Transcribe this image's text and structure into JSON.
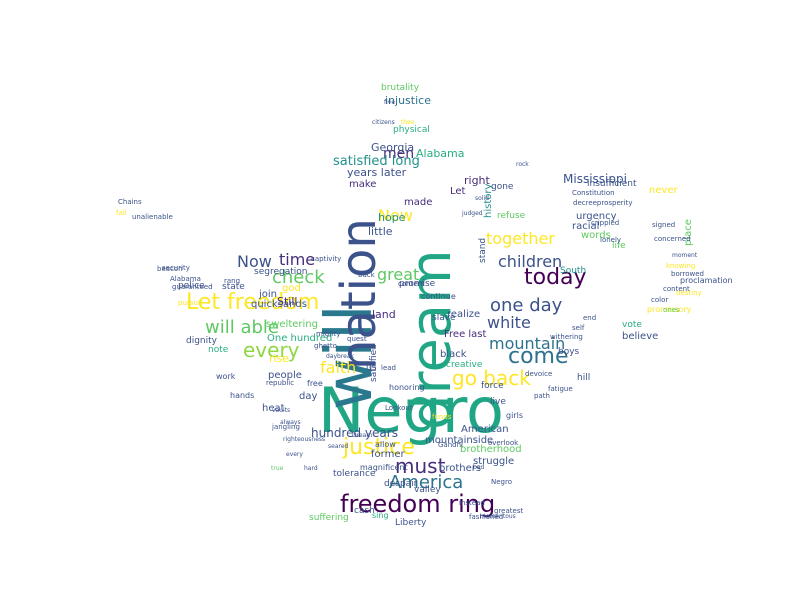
{
  "palette": {
    "dark_purple": "#440154",
    "indigo": "#3b528b",
    "teal_blue": "#2c728e",
    "teal": "#21918c",
    "green": "#28ae80",
    "light_green": "#5ec962",
    "lime": "#addc30",
    "yellow": "#fde725",
    "background": "#ffffff"
  },
  "words": [
    {
      "text": "Negro",
      "color": "#21a685",
      "rotated": false
    },
    {
      "text": "dream",
      "color": "#21a685",
      "rotated": true
    },
    {
      "text": "will",
      "color": "#2a788e",
      "rotated": true
    },
    {
      "text": "nation",
      "color": "#3b528b",
      "rotated": true
    },
    {
      "text": "freedom ring",
      "color": "#440154",
      "rotated": false
    },
    {
      "text": "Let freedom",
      "color": "#fde725",
      "rotated": false
    },
    {
      "text": "every",
      "color": "#8fd744",
      "rotated": false
    },
    {
      "text": "go back",
      "color": "#fde725",
      "rotated": false
    },
    {
      "text": "come",
      "color": "#2c728e",
      "rotated": false
    },
    {
      "text": "justice",
      "color": "#fde725",
      "rotated": false
    },
    {
      "text": "today",
      "color": "#440154",
      "rotated": false
    },
    {
      "text": "must",
      "color": "#472d7b",
      "rotated": false
    },
    {
      "text": "one day",
      "color": "#3b528b",
      "rotated": false
    },
    {
      "text": "America",
      "color": "#2c728e",
      "rotated": false
    },
    {
      "text": "will able",
      "color": "#5ec962",
      "rotated": false
    },
    {
      "text": "faith",
      "color": "#fde725",
      "rotated": false
    },
    {
      "text": "white",
      "color": "#3b528b",
      "rotated": false
    },
    {
      "text": "check",
      "color": "#5ec962",
      "rotated": false
    },
    {
      "text": "mountain",
      "color": "#2c728e",
      "rotated": false
    },
    {
      "text": "together",
      "color": "#fde725",
      "rotated": false
    },
    {
      "text": "children",
      "color": "#3b528b",
      "rotated": false
    },
    {
      "text": "time",
      "color": "#472d7b",
      "rotated": false
    },
    {
      "text": "great",
      "color": "#5ec962",
      "rotated": false
    },
    {
      "text": "New",
      "color": "#fde725",
      "rotated": false
    },
    {
      "text": "Now",
      "color": "#3b528b",
      "rotated": false
    },
    {
      "text": "men",
      "color": "#472d7b",
      "rotated": false
    },
    {
      "text": "Mississippi",
      "color": "#3b528b",
      "rotated": false
    },
    {
      "text": "satisfied long",
      "color": "#21918c",
      "rotated": false
    },
    {
      "text": "years later",
      "color": "#3b528b",
      "rotated": false
    },
    {
      "text": "Georgia",
      "color": "#3b528b",
      "rotated": false
    },
    {
      "text": "Alabama",
      "color": "#28ae80",
      "rotated": false
    },
    {
      "text": "hundred years",
      "color": "#3b528b",
      "rotated": false
    },
    {
      "text": "injustice",
      "color": "#2c728e",
      "rotated": false
    },
    {
      "text": "brutality",
      "color": "#5ec962",
      "rotated": false
    },
    {
      "text": "physical",
      "color": "#28ae80",
      "rotated": false
    },
    {
      "text": "insufficient",
      "color": "#3b528b",
      "rotated": false
    },
    {
      "text": "never",
      "color": "#fde725",
      "rotated": false
    },
    {
      "text": "right",
      "color": "#472d7b",
      "rotated": false
    },
    {
      "text": "made",
      "color": "#472d7b",
      "rotated": false
    },
    {
      "text": "make",
      "color": "#472d7b",
      "rotated": false
    },
    {
      "text": "hope",
      "color": "#21918c",
      "rotated": false
    },
    {
      "text": "little",
      "color": "#3b528b",
      "rotated": false
    },
    {
      "text": "history",
      "color": "#21918c",
      "rotated": true
    },
    {
      "text": "refuse",
      "color": "#5ec962",
      "rotated": false
    },
    {
      "text": "urgency",
      "color": "#3b528b",
      "rotated": false
    },
    {
      "text": "racial",
      "color": "#3b528b",
      "rotated": false
    },
    {
      "text": "words",
      "color": "#5ec962",
      "rotated": false
    },
    {
      "text": "place",
      "color": "#5ec962",
      "rotated": true
    },
    {
      "text": "life",
      "color": "#5ec962",
      "rotated": false
    },
    {
      "text": "South",
      "color": "#21918c",
      "rotated": false
    },
    {
      "text": "Still",
      "color": "#472d7b",
      "rotated": false
    },
    {
      "text": "god",
      "color": "#fde725",
      "rotated": false
    },
    {
      "text": "sweltering",
      "color": "#5ec962",
      "rotated": false
    },
    {
      "text": "segregation",
      "color": "#3b528b",
      "rotated": false
    },
    {
      "text": "join",
      "color": "#3b528b",
      "rotated": false
    },
    {
      "text": "state",
      "color": "#3b528b",
      "rotated": false
    },
    {
      "text": "police",
      "color": "#3b528b",
      "rotated": false
    },
    {
      "text": "One hundred",
      "color": "#28ae80",
      "rotated": false
    },
    {
      "text": "people",
      "color": "#3b528b",
      "rotated": false
    },
    {
      "text": "promise",
      "color": "#3b528b",
      "rotated": false
    },
    {
      "text": "land",
      "color": "#472d7b",
      "rotated": false
    },
    {
      "text": "slave",
      "color": "#3b528b",
      "rotated": false
    },
    {
      "text": "realize",
      "color": "#3b528b",
      "rotated": false
    },
    {
      "text": "Free last",
      "color": "#472d7b",
      "rotated": false
    },
    {
      "text": "believe",
      "color": "#3b528b",
      "rotated": false
    },
    {
      "text": "vote",
      "color": "#28ae80",
      "rotated": false
    },
    {
      "text": "promissory",
      "color": "#fde725",
      "rotated": false
    },
    {
      "text": "black",
      "color": "#3b528b",
      "rotated": false
    },
    {
      "text": "creative",
      "color": "#28ae80",
      "rotated": false
    },
    {
      "text": "force",
      "color": "#3b528b",
      "rotated": false
    },
    {
      "text": "hill",
      "color": "#3b528b",
      "rotated": false
    },
    {
      "text": "boys",
      "color": "#3b528b",
      "rotated": false
    },
    {
      "text": "live",
      "color": "#3b528b",
      "rotated": false
    },
    {
      "text": "girls",
      "color": "#3b528b",
      "rotated": false
    },
    {
      "text": "satisfied",
      "color": "#3b528b",
      "rotated": true
    },
    {
      "text": "rise",
      "color": "#fde725",
      "rotated": false
    },
    {
      "text": "day",
      "color": "#3b528b",
      "rotated": false
    },
    {
      "text": "heat",
      "color": "#3b528b",
      "rotated": false
    },
    {
      "text": "American",
      "color": "#3b528b",
      "rotated": false
    },
    {
      "text": "mountainside",
      "color": "#3b528b",
      "rotated": false
    },
    {
      "text": "brotherhood",
      "color": "#5ec962",
      "rotated": false
    },
    {
      "text": "struggle",
      "color": "#3b528b",
      "rotated": false
    },
    {
      "text": "brothers",
      "color": "#3b528b",
      "rotated": false
    },
    {
      "text": "former",
      "color": "#3b528b",
      "rotated": false
    },
    {
      "text": "despair",
      "color": "#3b528b",
      "rotated": false
    },
    {
      "text": "valley",
      "color": "#3b528b",
      "rotated": false
    },
    {
      "text": "suffering",
      "color": "#5ec962",
      "rotated": false
    },
    {
      "text": "cash",
      "color": "#3b528b",
      "rotated": false
    },
    {
      "text": "Liberty",
      "color": "#3b528b",
      "rotated": false
    },
    {
      "text": "sing",
      "color": "#28ae80",
      "rotated": false
    },
    {
      "text": "dignity",
      "color": "#3b528b",
      "rotated": false
    },
    {
      "text": "note",
      "color": "#28ae80",
      "rotated": false
    },
    {
      "text": "work",
      "color": "#3b528b",
      "rotated": false
    },
    {
      "text": "free",
      "color": "#3b528b",
      "rotated": false
    },
    {
      "text": "us",
      "color": "#3b528b",
      "rotated": false
    },
    {
      "text": "stand",
      "color": "#3b528b",
      "rotated": true
    },
    {
      "text": "Let",
      "color": "#472d7b",
      "rotated": false
    },
    {
      "text": "gone",
      "color": "#3b528b",
      "rotated": false
    },
    {
      "text": "continue",
      "color": "#3b528b",
      "rotated": false
    },
    {
      "text": "content",
      "color": "#3b528b",
      "rotated": false
    },
    {
      "text": "back",
      "color": "#3b528b",
      "rotated": false
    },
    {
      "text": "captivity",
      "color": "#3b528b",
      "rotated": false
    },
    {
      "text": "mighty",
      "color": "#3b528b",
      "rotated": false
    },
    {
      "text": "ghetto",
      "color": "#3b528b",
      "rotated": false
    },
    {
      "text": "quest",
      "color": "#3b528b",
      "rotated": false
    },
    {
      "text": "lead",
      "color": "#3b528b",
      "rotated": false
    },
    {
      "text": "honoring",
      "color": "#3b528b",
      "rotated": false
    },
    {
      "text": "allow",
      "color": "#3b528b",
      "rotated": false
    },
    {
      "text": "magnificent",
      "color": "#3b528b",
      "rotated": false
    },
    {
      "text": "republic",
      "color": "#3b528b",
      "rotated": false
    },
    {
      "text": "hands",
      "color": "#3b528b",
      "rotated": false
    },
    {
      "text": "proclamation",
      "color": "#3b528b",
      "rotated": false
    },
    {
      "text": "destiny",
      "color": "#fde725",
      "rotated": false
    },
    {
      "text": "color",
      "color": "#3b528b",
      "rotated": false
    },
    {
      "text": "security",
      "color": "#3b528b",
      "rotated": false
    },
    {
      "text": "guaranteed",
      "color": "#3b528b",
      "rotated": false
    },
    {
      "text": "Alabama",
      "color": "#3b528b",
      "rotated": false
    },
    {
      "text": "Chains",
      "color": "#3b528b",
      "rotated": false
    },
    {
      "text": "fail",
      "color": "#fde725",
      "rotated": false
    },
    {
      "text": "signed",
      "color": "#3b528b",
      "rotated": false
    },
    {
      "text": "concerned",
      "color": "#3b528b",
      "rotated": false
    },
    {
      "text": "crippled",
      "color": "#3b528b",
      "rotated": false
    },
    {
      "text": "unalienable",
      "color": "#3b528b",
      "rotated": false
    },
    {
      "text": "beacon",
      "color": "#3b528b",
      "rotated": false
    },
    {
      "text": "pursuit",
      "color": "#fde725",
      "rotated": false
    },
    {
      "text": "fashioned",
      "color": "#3b528b",
      "rotated": false
    },
    {
      "text": "instead",
      "color": "#3b528b",
      "rotated": false
    },
    {
      "text": "greatest",
      "color": "#3b528b",
      "rotated": false
    },
    {
      "text": "overlook",
      "color": "#3b528b",
      "rotated": false
    },
    {
      "text": "lonely",
      "color": "#3b528b",
      "rotated": false
    },
    {
      "text": "funds",
      "color": "#fde725",
      "rotated": false
    },
    {
      "text": "Dream",
      "color": "#3b528b",
      "rotated": false
    },
    {
      "text": "ones",
      "color": "#5ec962",
      "rotated": false
    },
    {
      "text": "devoice",
      "color": "#3b528b",
      "rotated": false
    },
    {
      "text": "fatigue",
      "color": "#3b528b",
      "rotated": false
    },
    {
      "text": "withering",
      "color": "#3b528b",
      "rotated": false
    },
    {
      "text": "self",
      "color": "#3b528b",
      "rotated": false
    },
    {
      "text": "end",
      "color": "#3b528b",
      "rotated": false
    },
    {
      "text": "path",
      "color": "#3b528b",
      "rotated": false
    },
    {
      "text": "Constitution",
      "color": "#3b528b",
      "rotated": false
    },
    {
      "text": "decreeprosperity",
      "color": "#3b528b",
      "rotated": false
    },
    {
      "text": "moment",
      "color": "#3b528b",
      "rotated": false
    },
    {
      "text": "knowing",
      "color": "#fde725",
      "rotated": false
    },
    {
      "text": "borrowed",
      "color": "#3b528b",
      "rotated": false
    },
    {
      "text": "content",
      "color": "#3b528b",
      "rotated": false
    },
    {
      "text": "tolerance",
      "color": "#3b528b",
      "rotated": false
    },
    {
      "text": "bad",
      "color": "#3b528b",
      "rotated": false
    },
    {
      "text": "judged",
      "color": "#3b528b",
      "rotated": false
    },
    {
      "text": "solid",
      "color": "#3b528b",
      "rotated": false
    },
    {
      "text": "thee",
      "color": "#fde725",
      "rotated": false
    },
    {
      "text": "five",
      "color": "#3b528b",
      "rotated": false
    },
    {
      "text": "citizens",
      "color": "#3b528b",
      "rotated": false
    },
    {
      "text": "rock",
      "color": "#3b528b",
      "rotated": false
    },
    {
      "text": "momentous",
      "color": "#3b528b",
      "rotated": false
    },
    {
      "text": "righteousness",
      "color": "#3b528b",
      "rotated": false
    },
    {
      "text": "seared",
      "color": "#3b528b",
      "rotated": false
    },
    {
      "text": "always",
      "color": "#3b528b",
      "rotated": false
    },
    {
      "text": "vaults",
      "color": "#3b528b",
      "rotated": false
    },
    {
      "text": "quicksands",
      "color": "#3b528b",
      "rotated": false
    },
    {
      "text": "daybreak",
      "color": "#3b528b",
      "rotated": false
    },
    {
      "text": "every",
      "color": "#3b528b",
      "rotated": false
    },
    {
      "text": "hard",
      "color": "#3b528b",
      "rotated": false
    },
    {
      "text": "true",
      "color": "#5ec962",
      "rotated": false
    },
    {
      "text": "rang",
      "color": "#3b528b",
      "rotated": false
    },
    {
      "text": "jangling",
      "color": "#3b528b",
      "rotated": false
    },
    {
      "text": "Lookout",
      "color": "#3b528b",
      "rotated": false
    },
    {
      "text": "Gandhi",
      "color": "#3b528b",
      "rotated": false
    },
    {
      "text": "Negro",
      "color": "#3b528b",
      "rotated": false
    }
  ]
}
